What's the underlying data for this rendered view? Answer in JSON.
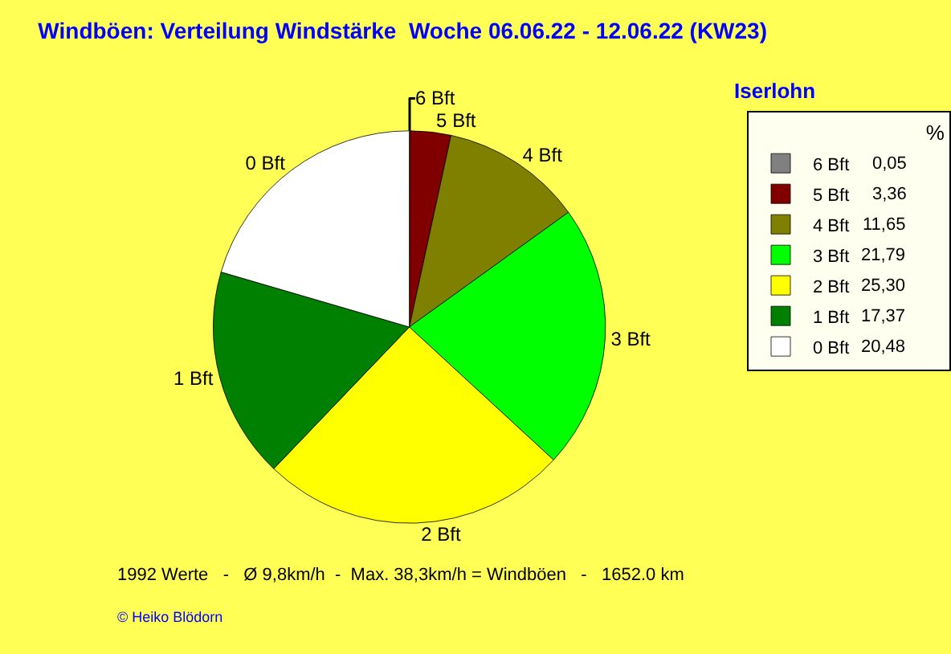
{
  "chart_data": {
    "type": "pie",
    "title": "Windböen: Verteilung Windstärke  Woche 06.06.22 - 12.06.22 (KW23)",
    "subtitle": "Iserlohn",
    "categories": [
      "6 Bft",
      "5 Bft",
      "4 Bft",
      "3 Bft",
      "2 Bft",
      "1 Bft",
      "0 Bft"
    ],
    "values": [
      0.05,
      3.36,
      11.65,
      21.79,
      25.3,
      17.37,
      20.48
    ],
    "value_labels": [
      "0,05",
      "3,36",
      "11,65",
      "21,79",
      "25,30",
      "17,37",
      "20,48"
    ],
    "colors": [
      "#808080",
      "#800000",
      "#808000",
      "#00ff00",
      "#ffff00",
      "#008000",
      "#ffffff"
    ],
    "legend": "top right",
    "legend_title": "%",
    "annotations": [
      "1992 Werte   -   Ø 9,8km/h  -  Max. 38,3km/h = Windböen   -   1652.0 km",
      "© Heiko Blödorn"
    ]
  }
}
